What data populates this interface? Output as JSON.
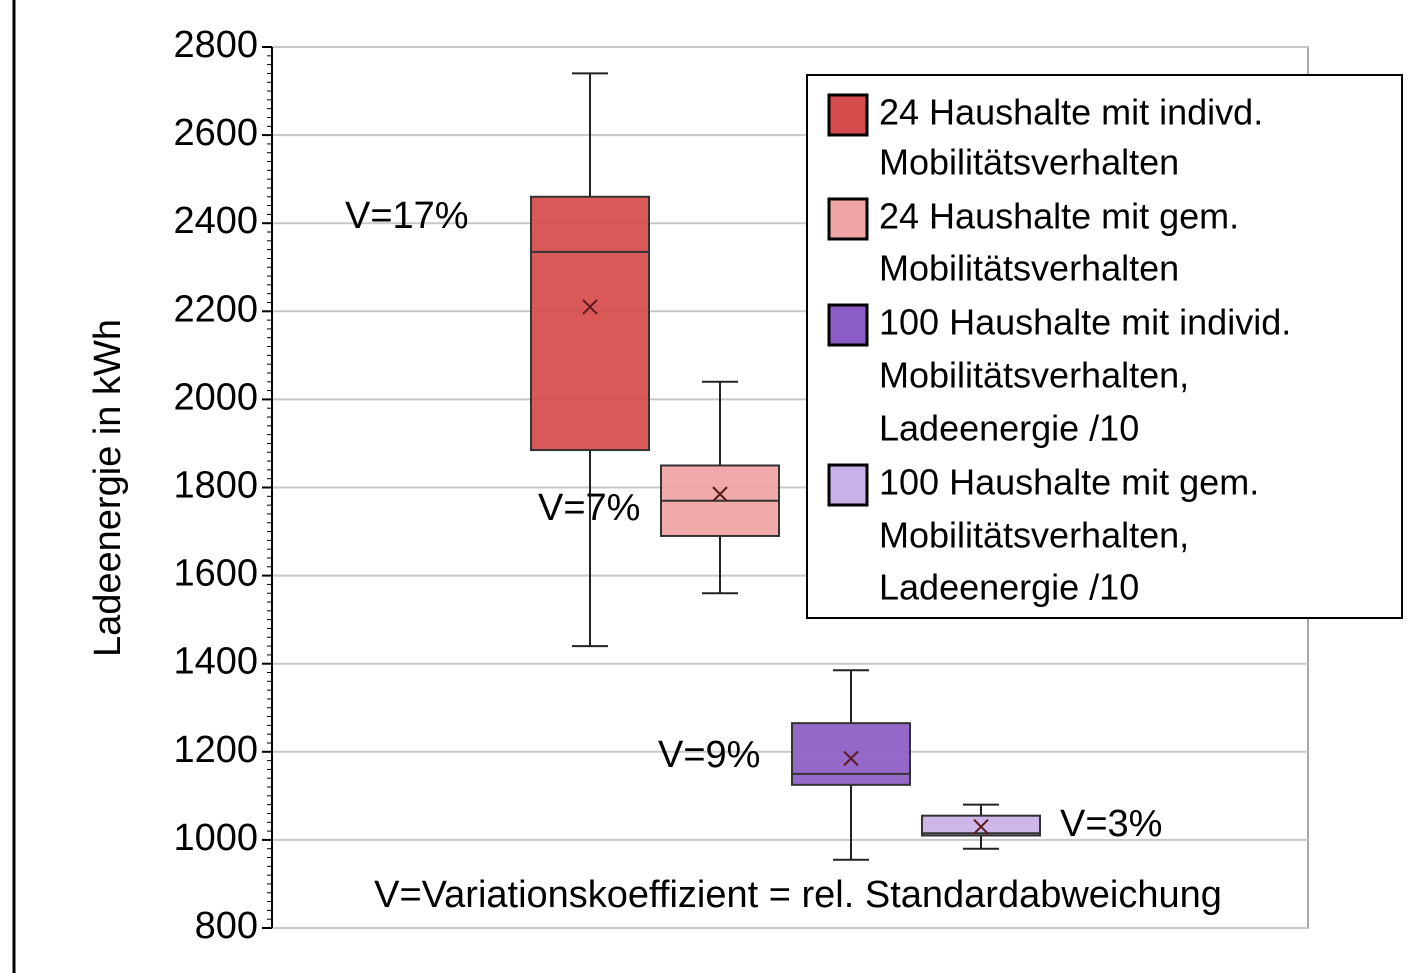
{
  "chart_data": {
    "type": "box",
    "ylabel": "Ladeenergie in kWh",
    "ylim": [
      800,
      2800
    ],
    "yticks": [
      800,
      1000,
      1200,
      1400,
      1600,
      1800,
      2000,
      2200,
      2400,
      2600,
      2800
    ],
    "grid": true,
    "legend": "top-right",
    "series": [
      {
        "name": [
          "24 Haushalte mit indivd.",
          "Mobilitätsverhalten"
        ],
        "color": "#d64b4b",
        "min": 1440,
        "q1": 1885,
        "median": 2335,
        "q3": 2460,
        "max": 2740,
        "mean": 2210
      },
      {
        "name": [
          "24 Haushalte mit gem.",
          "Mobilitätsverhalten"
        ],
        "color": "#f0a3a3",
        "min": 1560,
        "q1": 1690,
        "median": 1770,
        "q3": 1850,
        "max": 2040,
        "mean": 1785
      },
      {
        "name": [
          "100 Haushalte mit individ.",
          "Mobilitätsverhalten,",
          "Ladeenergie /10"
        ],
        "color": "#8c5cc6",
        "min": 955,
        "q1": 1125,
        "median": 1150,
        "q3": 1265,
        "max": 1385,
        "mean": 1185
      },
      {
        "name": [
          "100 Haushalte mit gem.",
          "Mobilitätsverhalten,",
          "Ladeenergie /10"
        ],
        "color": "#c9b0e6",
        "min": 980,
        "q1": 1010,
        "median": 1015,
        "q3": 1055,
        "max": 1080,
        "mean": 1030
      }
    ],
    "annotations": [
      "V=17%",
      "V=7%",
      "V=9%",
      "V=3%"
    ],
    "note": "V=Variationskoeffizient = rel. Standardabweichung"
  }
}
